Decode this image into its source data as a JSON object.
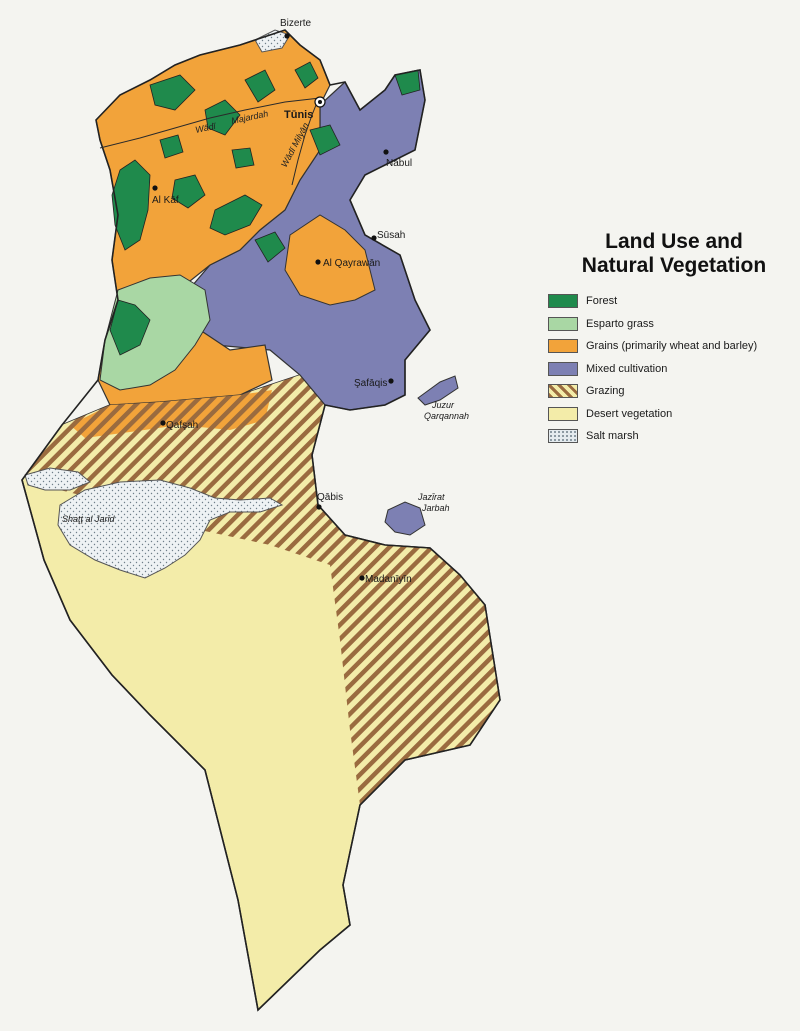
{
  "legend": {
    "title_line1": "Land Use and",
    "title_line2": "Natural Vegetation",
    "items": [
      {
        "label": "Forest",
        "color": "#1f8a4c",
        "pattern": "solid"
      },
      {
        "label": "Esparto grass",
        "color": "#a9d7a4",
        "pattern": "solid"
      },
      {
        "label": "Grains (primarily wheat and barley)",
        "color": "#f2a33a",
        "pattern": "solid"
      },
      {
        "label": "Mixed cultivation",
        "color": "#7d80b3",
        "pattern": "solid"
      },
      {
        "label": "Grazing",
        "color": "#9a6b3f",
        "pattern": "hatched"
      },
      {
        "label": "Desert vegetation",
        "color": "#f3eca9",
        "pattern": "solid"
      },
      {
        "label": "Salt marsh",
        "color": "#e4ebef",
        "pattern": "stippled"
      }
    ]
  },
  "places": {
    "bizerte": "Bizerte",
    "tunis": "Tūnis",
    "nabul": "Nābul",
    "al_kaf": "Al Kāf",
    "susah": "Sūsah",
    "al_qayrawan": "Al Qayrawān",
    "safaqis": "Şafāqis",
    "qafsah": "Qafşah",
    "qabis": "Qābis",
    "madaniyin": "Madanīyīn"
  },
  "features": {
    "shatt_al_jarid": "Shaţţ al Jarīd",
    "jazirat_jarbah_1": "Jazīrat",
    "jazirat_jarbah_2": "Jarbah",
    "juzur_qarqannah_1": "Juzur",
    "juzur_qarqannah_2": "Qarqannah"
  },
  "rivers": {
    "wadi": "Wādī",
    "majardah": "Majardah",
    "wadi_milyan": "Wādī Milyān"
  }
}
